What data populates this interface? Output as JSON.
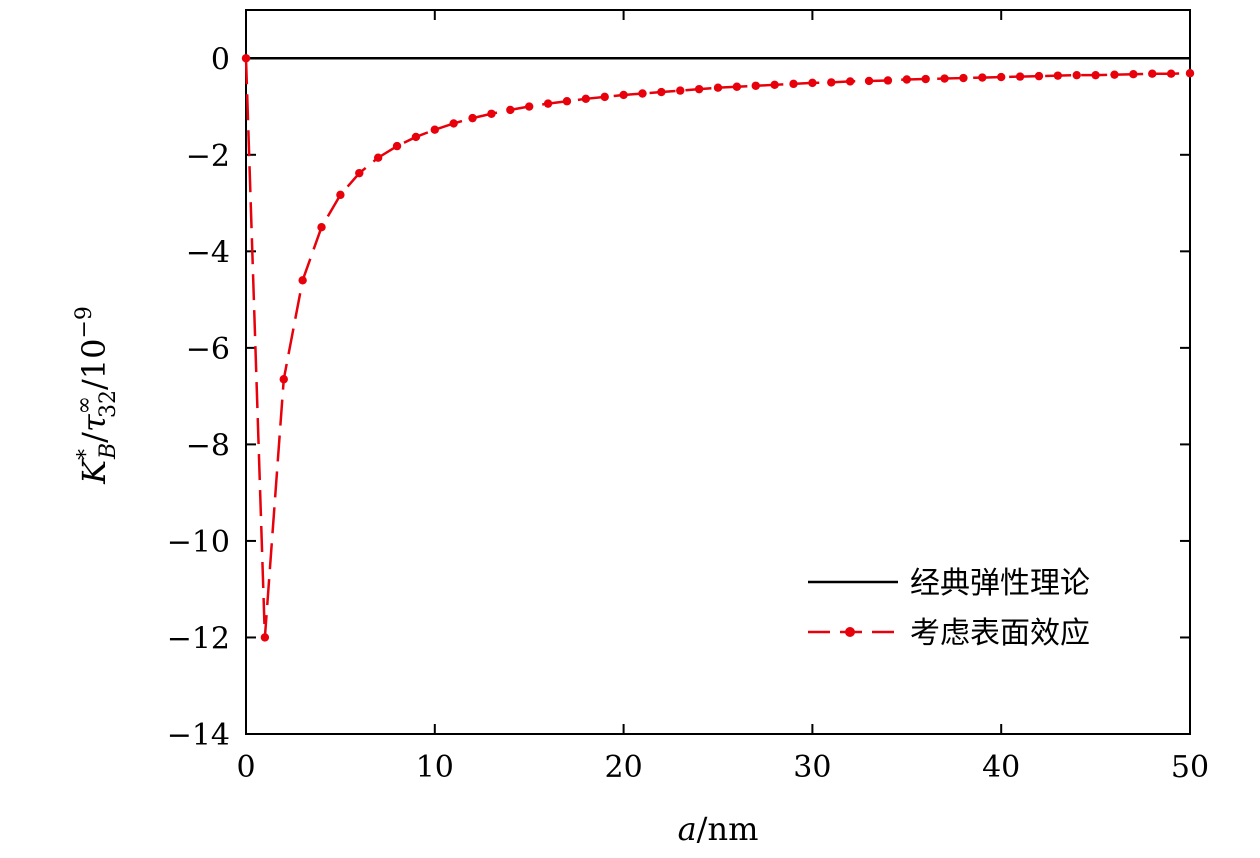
{
  "chart_data": {
    "type": "line",
    "title": "",
    "xlabel": "a/nm",
    "ylabel": "K*_B/τ∞_32/10^−9",
    "xlim": [
      0,
      50
    ],
    "ylim": [
      -14,
      1
    ],
    "x_ticks": [
      0,
      10,
      20,
      30,
      40,
      50
    ],
    "y_ticks": [
      0,
      -2,
      -4,
      -6,
      -8,
      -10,
      -12,
      -14
    ],
    "x_tick_labels": [
      "0",
      "10",
      "20",
      "30",
      "40",
      "50"
    ],
    "y_tick_labels": [
      "0",
      "−2",
      "−4",
      "−6",
      "−8",
      "−10",
      "−12",
      "−14"
    ],
    "grid": false,
    "legend_position": "lower-right",
    "series": [
      {
        "name": "经典弹性理论",
        "color": "#000000",
        "style": "solid",
        "x": [
          0,
          50
        ],
        "y": [
          0,
          0
        ]
      },
      {
        "name": "考虑表面效应",
        "color": "#e8000b",
        "style": "dashed-dotted-markers",
        "x": [
          0,
          1,
          2,
          3,
          4,
          5,
          6,
          7,
          8,
          9,
          10,
          11,
          12,
          13,
          14,
          15,
          16,
          17,
          18,
          19,
          20,
          21,
          22,
          23,
          24,
          25,
          26,
          27,
          28,
          29,
          30,
          31,
          32,
          33,
          34,
          35,
          36,
          37,
          38,
          39,
          40,
          41,
          42,
          43,
          44,
          45,
          46,
          47,
          48,
          49,
          50
        ],
        "y": [
          0,
          -12.0,
          -6.65,
          -4.6,
          -3.5,
          -2.83,
          -2.38,
          -2.06,
          -1.82,
          -1.63,
          -1.48,
          -1.35,
          -1.24,
          -1.15,
          -1.07,
          -1.0,
          -0.94,
          -0.89,
          -0.84,
          -0.8,
          -0.76,
          -0.73,
          -0.7,
          -0.67,
          -0.64,
          -0.61,
          -0.59,
          -0.57,
          -0.55,
          -0.53,
          -0.51,
          -0.5,
          -0.48,
          -0.47,
          -0.46,
          -0.44,
          -0.43,
          -0.42,
          -0.41,
          -0.4,
          -0.39,
          -0.38,
          -0.37,
          -0.36,
          -0.35,
          -0.35,
          -0.34,
          -0.33,
          -0.32,
          -0.32,
          -0.31
        ]
      }
    ]
  }
}
